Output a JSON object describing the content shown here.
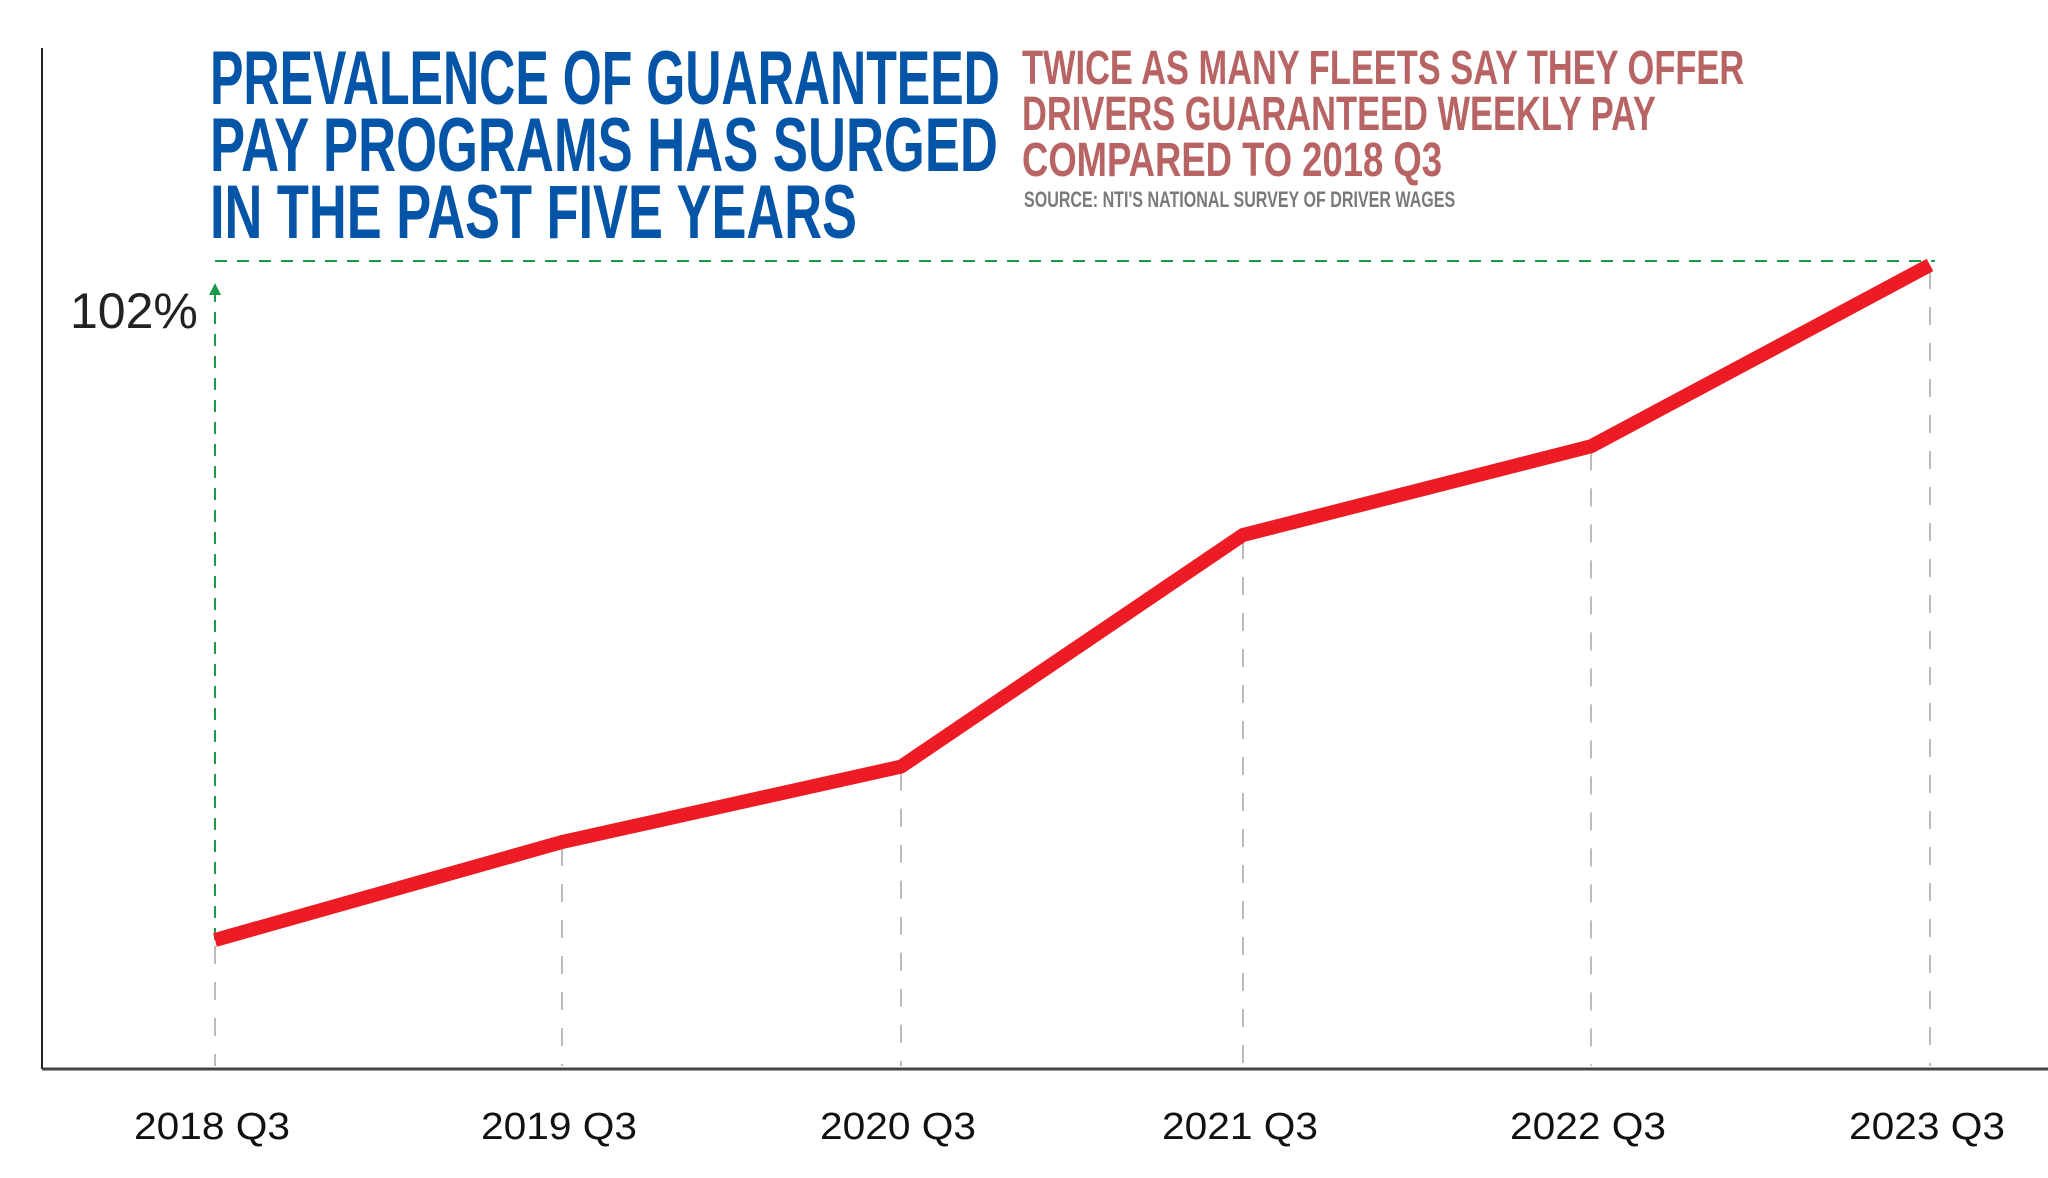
{
  "title": {
    "lines": [
      "PREVALENCE OF GUARANTEED",
      "PAY PROGRAMS HAS SURGED",
      "IN THE PAST FIVE YEARS"
    ],
    "color": "#0455a8"
  },
  "subtitle": {
    "lines": [
      "TWICE AS MANY FLEETS SAY THEY OFFER",
      "DRIVERS GUARANTEED WEEKLY PAY",
      "COMPARED TO 2018 Q3"
    ],
    "color": "#b86464"
  },
  "source": "SOURCE: NTI'S NATIONAL SURVEY OF DRIVER WAGES",
  "chart_data": {
    "type": "line",
    "categories": [
      "2018 Q3",
      "2019 Q3",
      "2020 Q3",
      "2021 Q3",
      "2022 Q3",
      "2023 Q3"
    ],
    "values": [
      0,
      14.8,
      26.2,
      61.2,
      74.6,
      102
    ],
    "annotation": "102%",
    "line_color": "#ed1c24",
    "annotation_color": "#1a9a4a",
    "grid": "vertical dashed",
    "xlabel": "",
    "ylabel": ""
  }
}
